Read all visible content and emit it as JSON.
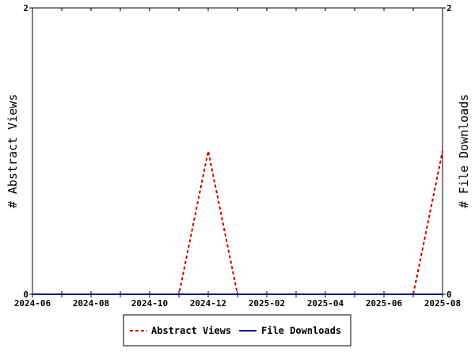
{
  "chart_data": {
    "type": "line",
    "y_left_label": "# Abstract Views",
    "y_right_label": "# File Downloads",
    "y_left_range": [
      0,
      2
    ],
    "y_right_range": [
      0,
      2
    ],
    "y_left_ticks": [
      "0",
      "2"
    ],
    "y_right_ticks": [
      "0",
      "2"
    ],
    "x_range": [
      "2024-06",
      "2025-08"
    ],
    "x_tick_labels": [
      "2024-06",
      "2024-08",
      "2024-10",
      "2024-12",
      "2025-02",
      "2025-04",
      "2025-06",
      "2025-08"
    ],
    "x_months": [
      "2024-06",
      "2024-07",
      "2024-08",
      "2024-09",
      "2024-10",
      "2024-11",
      "2024-12",
      "2025-01",
      "2025-02",
      "2025-03",
      "2025-04",
      "2025-05",
      "2025-06",
      "2025-07",
      "2025-08"
    ],
    "grid": false,
    "legend_position": "bottom-center",
    "series": [
      {
        "name": "Abstract Views",
        "axis": "left",
        "color": "#cc0000",
        "style": "dashed",
        "values": [
          0,
          0,
          0,
          0,
          0,
          0,
          1,
          0,
          0,
          0,
          0,
          0,
          0,
          0,
          1
        ]
      },
      {
        "name": "File Downloads",
        "axis": "right",
        "color": "#00008b",
        "style": "solid",
        "values": [
          0,
          0,
          0,
          0,
          0,
          0,
          0,
          0,
          0,
          0,
          0,
          0,
          0,
          0,
          0
        ]
      }
    ]
  }
}
